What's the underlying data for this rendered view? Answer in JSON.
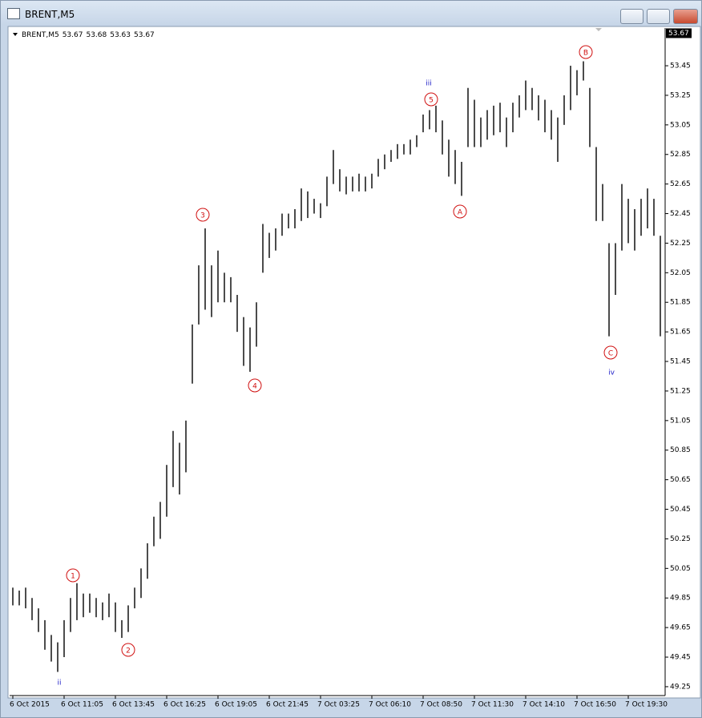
{
  "window": {
    "title": "BRENT,M5"
  },
  "chart_data": {
    "type": "range-bar",
    "symbol": "BRENT,M5",
    "quote": [
      53.67,
      53.68,
      53.63,
      53.67
    ],
    "last_price": 53.67,
    "color": "#000000",
    "high": [
      49.92,
      49.9,
      49.92,
      49.85,
      49.78,
      49.7,
      49.6,
      49.55,
      49.7,
      49.85,
      49.95,
      49.88,
      49.88,
      49.85,
      49.82,
      49.88,
      49.82,
      49.7,
      49.8,
      49.92,
      50.05,
      50.22,
      50.4,
      50.5,
      50.75,
      50.98,
      50.9,
      51.05,
      51.7,
      52.1,
      52.35,
      52.1,
      52.2,
      52.05,
      52.02,
      51.9,
      51.75,
      51.68,
      51.85,
      52.38,
      52.32,
      52.35,
      52.45,
      52.45,
      52.48,
      52.62,
      52.6,
      52.55,
      52.52,
      52.7,
      52.88,
      52.75,
      52.7,
      52.7,
      52.72,
      52.7,
      52.72,
      52.82,
      52.85,
      52.88,
      52.92,
      52.92,
      52.95,
      52.98,
      53.12,
      53.15,
      53.18,
      53.08,
      52.95,
      52.88,
      52.8,
      53.3,
      53.22,
      53.1,
      53.15,
      53.18,
      53.2,
      53.1,
      53.2,
      53.25,
      53.35,
      53.3,
      53.25,
      53.22,
      53.15,
      53.1,
      53.25,
      53.45,
      53.42,
      53.48,
      53.3,
      52.9,
      52.65,
      52.25,
      52.25,
      52.65,
      52.55,
      52.48,
      52.55,
      52.62,
      52.55,
      52.3
    ],
    "low": [
      49.8,
      49.8,
      49.78,
      49.7,
      49.62,
      49.5,
      49.42,
      49.35,
      49.45,
      49.62,
      49.7,
      49.72,
      49.75,
      49.72,
      49.7,
      49.72,
      49.62,
      49.58,
      49.62,
      49.78,
      49.85,
      49.98,
      50.2,
      50.25,
      50.4,
      50.6,
      50.55,
      50.7,
      51.3,
      51.7,
      51.8,
      51.75,
      51.85,
      51.85,
      51.85,
      51.65,
      51.42,
      51.38,
      51.55,
      52.05,
      52.15,
      52.2,
      52.3,
      52.35,
      52.35,
      52.4,
      52.42,
      52.45,
      52.42,
      52.5,
      52.65,
      52.6,
      52.58,
      52.6,
      52.6,
      52.6,
      52.62,
      52.7,
      52.75,
      52.8,
      52.82,
      52.85,
      52.85,
      52.9,
      53.0,
      53.02,
      53.0,
      52.85,
      52.7,
      52.65,
      52.57,
      52.9,
      52.9,
      52.9,
      52.95,
      52.98,
      53.0,
      52.9,
      53.0,
      53.1,
      53.15,
      53.15,
      53.08,
      53.0,
      52.95,
      52.8,
      53.05,
      53.15,
      53.25,
      53.35,
      52.9,
      52.4,
      52.4,
      51.62,
      51.9,
      52.2,
      52.25,
      52.2,
      52.3,
      52.35,
      52.3,
      51.62
    ],
    "xlim": [
      -0.5,
      101.75
    ],
    "xticks": [
      {
        "value": 0,
        "label": "6 Oct 2015"
      },
      {
        "value": 8,
        "label": "6 Oct 11:05"
      },
      {
        "value": 16,
        "label": "6 Oct 13:45"
      },
      {
        "value": 24,
        "label": "6 Oct 16:25"
      },
      {
        "value": 32,
        "label": "6 Oct 19:05"
      },
      {
        "value": 40,
        "label": "6 Oct 21:45"
      },
      {
        "value": 48,
        "label": "7 Oct 03:25"
      },
      {
        "value": 56,
        "label": "7 Oct 06:10"
      },
      {
        "value": 64,
        "label": "7 Oct 08:50"
      },
      {
        "value": 72,
        "label": "7 Oct 11:30"
      },
      {
        "value": 80,
        "label": "7 Oct 14:10"
      },
      {
        "value": 88,
        "label": "7 Oct 16:50"
      },
      {
        "value": 96,
        "label": "7 Oct 19:30"
      }
    ],
    "ylim": [
      49.19,
      53.705
    ],
    "yticks": [
      49.25,
      49.45,
      49.65,
      49.85,
      50.05,
      50.25,
      50.45,
      50.65,
      50.85,
      51.05,
      51.25,
      51.45,
      51.65,
      51.85,
      52.05,
      52.25,
      52.45,
      52.65,
      52.85,
      53.05,
      53.25,
      53.45
    ],
    "annotations": [
      "1",
      "2",
      "3",
      "4",
      "5",
      "A",
      "B",
      "C"
    ],
    "wave_labels": [
      "ii",
      "iii",
      "iv"
    ],
    "annotation_color": "#d01010",
    "wave_label_color": "#2020c8"
  }
}
